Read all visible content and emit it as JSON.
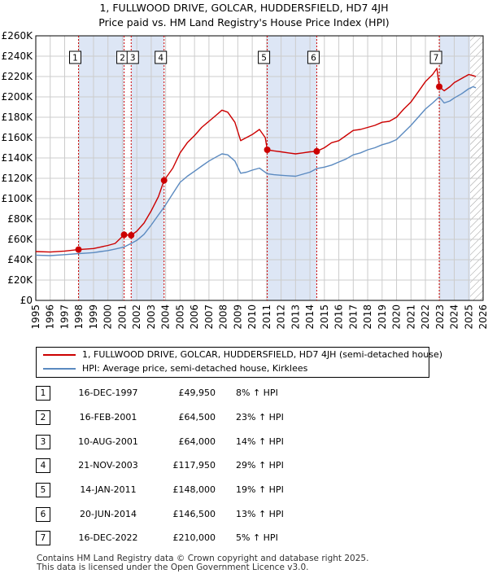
{
  "title_line1": "1, FULLWOOD DRIVE, GOLCAR, HUDDERSFIELD, HD7 4JH",
  "title_line2": "Price paid vs. HM Land Registry's House Price Index (HPI)",
  "colors": {
    "price_line": "#cc0000",
    "hpi_line": "#5b8ac0",
    "shade": "#dde6f5",
    "event_line": "#cc0000",
    "grid": "#cccccc"
  },
  "chart_data": {
    "type": "line",
    "x_range": [
      1995,
      2026
    ],
    "ylim": [
      0,
      260000
    ],
    "y_ticks": [
      {
        "value": 0,
        "label": "£0"
      },
      {
        "value": 20000,
        "label": "£20K"
      },
      {
        "value": 40000,
        "label": "£40K"
      },
      {
        "value": 60000,
        "label": "£60K"
      },
      {
        "value": 80000,
        "label": "£80K"
      },
      {
        "value": 100000,
        "label": "£100K"
      },
      {
        "value": 120000,
        "label": "£120K"
      },
      {
        "value": 140000,
        "label": "£140K"
      },
      {
        "value": 160000,
        "label": "£160K"
      },
      {
        "value": 180000,
        "label": "£180K"
      },
      {
        "value": 200000,
        "label": "£200K"
      },
      {
        "value": 220000,
        "label": "£220K"
      },
      {
        "value": 240000,
        "label": "£240K"
      },
      {
        "value": 260000,
        "label": "£260K"
      }
    ],
    "x_ticks": [
      "1995",
      "1996",
      "1997",
      "1998",
      "1999",
      "2000",
      "2001",
      "2002",
      "2003",
      "2004",
      "2005",
      "2006",
      "2007",
      "2008",
      "2009",
      "2010",
      "2011",
      "2012",
      "2013",
      "2014",
      "2015",
      "2016",
      "2017",
      "2018",
      "2019",
      "2020",
      "2021",
      "2022",
      "2023",
      "2024",
      "2025",
      "2026"
    ],
    "shaded_ranges": [
      [
        1997.96,
        2001.12
      ],
      [
        2001.61,
        2003.89
      ],
      [
        2011.04,
        2014.47
      ],
      [
        2022.96,
        2025.1
      ]
    ],
    "hatched_range": [
      2025.1,
      2026
    ],
    "series": [
      {
        "name": "1, FULLWOOD DRIVE, GOLCAR, HUDDERSFIELD, HD7 4JH (semi-detached house)",
        "points": [
          [
            1995.0,
            48000
          ],
          [
            1996.0,
            47500
          ],
          [
            1997.0,
            48500
          ],
          [
            1997.96,
            49950
          ],
          [
            1998.5,
            50500
          ],
          [
            1999.0,
            51000
          ],
          [
            1999.5,
            52500
          ],
          [
            2000.0,
            54000
          ],
          [
            2000.5,
            56000
          ],
          [
            2001.12,
            64500
          ],
          [
            2001.61,
            64000
          ],
          [
            2002.0,
            68000
          ],
          [
            2002.5,
            76000
          ],
          [
            2003.0,
            88000
          ],
          [
            2003.5,
            102000
          ],
          [
            2003.89,
            117950
          ],
          [
            2004.5,
            130000
          ],
          [
            2005.0,
            145000
          ],
          [
            2005.5,
            155000
          ],
          [
            2006.0,
            162000
          ],
          [
            2006.5,
            170000
          ],
          [
            2007.0,
            176000
          ],
          [
            2007.5,
            182000
          ],
          [
            2007.9,
            187000
          ],
          [
            2008.3,
            185000
          ],
          [
            2008.8,
            175000
          ],
          [
            2009.2,
            157000
          ],
          [
            2009.6,
            160000
          ],
          [
            2010.0,
            163000
          ],
          [
            2010.5,
            168000
          ],
          [
            2010.9,
            160000
          ],
          [
            2011.04,
            148000
          ],
          [
            2011.5,
            147000
          ],
          [
            2012.0,
            146000
          ],
          [
            2012.5,
            145000
          ],
          [
            2013.0,
            144000
          ],
          [
            2013.5,
            145000
          ],
          [
            2014.0,
            146000
          ],
          [
            2014.47,
            146500
          ],
          [
            2015.0,
            150000
          ],
          [
            2015.5,
            155000
          ],
          [
            2016.0,
            157000
          ],
          [
            2016.5,
            162000
          ],
          [
            2017.0,
            167000
          ],
          [
            2017.5,
            168000
          ],
          [
            2018.0,
            170000
          ],
          [
            2018.5,
            172000
          ],
          [
            2019.0,
            175000
          ],
          [
            2019.5,
            176000
          ],
          [
            2020.0,
            180000
          ],
          [
            2020.5,
            188000
          ],
          [
            2021.0,
            195000
          ],
          [
            2021.5,
            205000
          ],
          [
            2022.0,
            215000
          ],
          [
            2022.5,
            222000
          ],
          [
            2022.8,
            228000
          ],
          [
            2022.96,
            210000
          ],
          [
            2023.3,
            206000
          ],
          [
            2023.7,
            210000
          ],
          [
            2024.0,
            214000
          ],
          [
            2024.5,
            218000
          ],
          [
            2025.0,
            222000
          ],
          [
            2025.3,
            221000
          ],
          [
            2025.5,
            220000
          ]
        ]
      },
      {
        "name": "HPI: Average price, semi-detached house, Kirklees",
        "points": [
          [
            1995.0,
            44500
          ],
          [
            1996.0,
            44000
          ],
          [
            1997.0,
            45000
          ],
          [
            1997.96,
            46000
          ],
          [
            1998.5,
            46500
          ],
          [
            1999.0,
            47000
          ],
          [
            1999.5,
            48000
          ],
          [
            2000.0,
            49000
          ],
          [
            2000.5,
            50500
          ],
          [
            2001.12,
            52500
          ],
          [
            2001.61,
            56000
          ],
          [
            2002.0,
            59000
          ],
          [
            2002.5,
            65000
          ],
          [
            2003.0,
            74000
          ],
          [
            2003.5,
            84000
          ],
          [
            2003.89,
            91500
          ],
          [
            2004.5,
            105000
          ],
          [
            2005.0,
            116000
          ],
          [
            2005.5,
            122000
          ],
          [
            2006.0,
            127000
          ],
          [
            2006.5,
            132000
          ],
          [
            2007.0,
            137000
          ],
          [
            2007.5,
            141000
          ],
          [
            2007.9,
            144000
          ],
          [
            2008.3,
            143000
          ],
          [
            2008.8,
            137000
          ],
          [
            2009.2,
            125000
          ],
          [
            2009.6,
            126000
          ],
          [
            2010.0,
            128000
          ],
          [
            2010.5,
            130000
          ],
          [
            2011.04,
            124500
          ],
          [
            2011.5,
            123500
          ],
          [
            2012.0,
            123000
          ],
          [
            2012.5,
            122500
          ],
          [
            2013.0,
            122000
          ],
          [
            2013.5,
            124000
          ],
          [
            2014.0,
            126000
          ],
          [
            2014.47,
            129500
          ],
          [
            2015.0,
            131000
          ],
          [
            2015.5,
            133000
          ],
          [
            2016.0,
            136000
          ],
          [
            2016.5,
            139000
          ],
          [
            2017.0,
            143000
          ],
          [
            2017.5,
            145000
          ],
          [
            2018.0,
            148000
          ],
          [
            2018.5,
            150000
          ],
          [
            2019.0,
            153000
          ],
          [
            2019.5,
            155000
          ],
          [
            2020.0,
            158000
          ],
          [
            2020.5,
            165000
          ],
          [
            2021.0,
            172000
          ],
          [
            2021.5,
            180000
          ],
          [
            2022.0,
            188000
          ],
          [
            2022.5,
            194000
          ],
          [
            2022.96,
            200000
          ],
          [
            2023.3,
            194000
          ],
          [
            2023.7,
            196000
          ],
          [
            2024.0,
            199000
          ],
          [
            2024.5,
            203000
          ],
          [
            2025.0,
            208000
          ],
          [
            2025.3,
            210000
          ],
          [
            2025.5,
            209000
          ]
        ]
      }
    ],
    "events": [
      {
        "num": "1",
        "x": 1997.96,
        "price": 49950
      },
      {
        "num": "2",
        "x": 2001.12,
        "price": 64500
      },
      {
        "num": "3",
        "x": 2001.61,
        "price": 64000
      },
      {
        "num": "4",
        "x": 2003.89,
        "price": 117950
      },
      {
        "num": "5",
        "x": 2011.04,
        "price": 148000
      },
      {
        "num": "6",
        "x": 2014.47,
        "price": 146500
      },
      {
        "num": "7",
        "x": 2022.96,
        "price": 210000
      }
    ]
  },
  "legend": [
    {
      "label": "1, FULLWOOD DRIVE, GOLCAR, HUDDERSFIELD, HD7 4JH (semi-detached house)"
    },
    {
      "label": "HPI: Average price, semi-detached house, Kirklees"
    }
  ],
  "sales": [
    {
      "num": "1",
      "date": "16-DEC-1997",
      "price": "£49,950",
      "hpi": "8% ↑ HPI"
    },
    {
      "num": "2",
      "date": "16-FEB-2001",
      "price": "£64,500",
      "hpi": "23% ↑ HPI"
    },
    {
      "num": "3",
      "date": "10-AUG-2001",
      "price": "£64,000",
      "hpi": "14% ↑ HPI"
    },
    {
      "num": "4",
      "date": "21-NOV-2003",
      "price": "£117,950",
      "hpi": "29% ↑ HPI"
    },
    {
      "num": "5",
      "date": "14-JAN-2011",
      "price": "£148,000",
      "hpi": "19% ↑ HPI"
    },
    {
      "num": "6",
      "date": "20-JUN-2014",
      "price": "£146,500",
      "hpi": "13% ↑ HPI"
    },
    {
      "num": "7",
      "date": "16-DEC-2022",
      "price": "£210,000",
      "hpi": "5% ↑ HPI"
    }
  ],
  "footer_line1": "Contains HM Land Registry data © Crown copyright and database right 2025.",
  "footer_line2": "This data is licensed under the Open Government Licence v3.0."
}
